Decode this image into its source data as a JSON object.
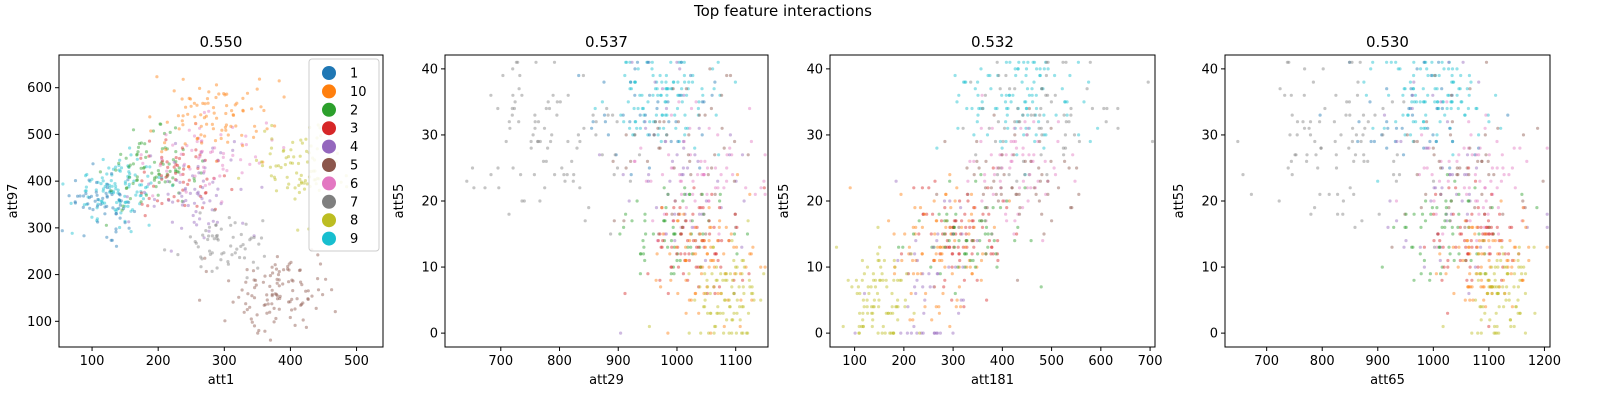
{
  "figure_title": "Top feature interactions",
  "palette": {
    "1": "#1f77b4",
    "10": "#ff7f0e",
    "2": "#2ca02c",
    "3": "#d62728",
    "4": "#9467bd",
    "5": "#8c564b",
    "6": "#e377c2",
    "7": "#7f7f7f",
    "8": "#bcbd22",
    "9": "#17becf"
  },
  "chart_data": [
    {
      "type": "scatter",
      "title": "0.550",
      "xlabel": "att1",
      "ylabel": "att97",
      "xlim": [
        50,
        540
      ],
      "ylim": [
        45,
        670
      ],
      "xticks": [
        100,
        200,
        300,
        400,
        500
      ],
      "yticks": [
        100,
        200,
        300,
        400,
        500,
        600
      ],
      "legend": {
        "position": "top-right",
        "entries": [
          "1",
          "10",
          "2",
          "3",
          "4",
          "5",
          "6",
          "7",
          "8",
          "9"
        ]
      },
      "clusters": [
        {
          "label": "9",
          "cx": 140,
          "cy": 385,
          "sx": 35,
          "sy": 35,
          "n": 110
        },
        {
          "label": "1",
          "cx": 115,
          "cy": 355,
          "sx": 25,
          "sy": 30,
          "n": 60
        },
        {
          "label": "2",
          "cx": 190,
          "cy": 420,
          "sx": 35,
          "sy": 40,
          "n": 80
        },
        {
          "label": "3",
          "cx": 235,
          "cy": 400,
          "sx": 35,
          "sy": 40,
          "n": 60
        },
        {
          "label": "4",
          "cx": 260,
          "cy": 380,
          "sx": 45,
          "sy": 50,
          "n": 70
        },
        {
          "label": "6",
          "cx": 275,
          "cy": 460,
          "sx": 45,
          "sy": 40,
          "n": 60
        },
        {
          "label": "10",
          "cx": 285,
          "cy": 540,
          "sx": 45,
          "sy": 45,
          "n": 90
        },
        {
          "label": "8",
          "cx": 410,
          "cy": 430,
          "sx": 35,
          "sy": 45,
          "n": 80
        },
        {
          "label": "7",
          "cx": 300,
          "cy": 265,
          "sx": 35,
          "sy": 35,
          "n": 60
        },
        {
          "label": "5",
          "cx": 390,
          "cy": 165,
          "sx": 40,
          "sy": 45,
          "n": 110
        }
      ]
    },
    {
      "type": "scatter",
      "title": "0.537",
      "xlabel": "att29",
      "ylabel": "att55",
      "xlim": [
        605,
        1155
      ],
      "ylim": [
        -2.1,
        42.1
      ],
      "xticks": [
        700,
        800,
        900,
        1000,
        1100
      ],
      "yticks": [
        0,
        10,
        20,
        30,
        40
      ],
      "clusters": [
        {
          "label": "9",
          "cx": 980,
          "cy": 35,
          "sx": 50,
          "sy": 4,
          "n": 110
        },
        {
          "label": "1",
          "cx": 960,
          "cy": 33,
          "sx": 55,
          "sy": 5,
          "n": 40
        },
        {
          "label": "7",
          "cx": 790,
          "cy": 30,
          "sx": 60,
          "sy": 7,
          "n": 90
        },
        {
          "label": "6",
          "cx": 1040,
          "cy": 24,
          "sx": 50,
          "sy": 5,
          "n": 70
        },
        {
          "label": "4",
          "cx": 1000,
          "cy": 22,
          "sx": 60,
          "sy": 9,
          "n": 50
        },
        {
          "label": "5",
          "cx": 1010,
          "cy": 25,
          "sx": 60,
          "sy": 7,
          "n": 50
        },
        {
          "label": "2",
          "cx": 990,
          "cy": 15,
          "sx": 55,
          "sy": 4,
          "n": 60
        },
        {
          "label": "3",
          "cx": 1040,
          "cy": 14,
          "sx": 45,
          "sy": 4,
          "n": 70
        },
        {
          "label": "10",
          "cx": 1050,
          "cy": 11,
          "sx": 40,
          "sy": 4,
          "n": 80
        },
        {
          "label": "8",
          "cx": 1085,
          "cy": 5,
          "sx": 30,
          "sy": 4,
          "n": 90
        }
      ]
    },
    {
      "type": "scatter",
      "title": "0.532",
      "xlabel": "att181",
      "ylabel": "att55",
      "xlim": [
        50,
        710
      ],
      "ylim": [
        -2.1,
        42.1
      ],
      "xticks": [
        100,
        200,
        300,
        400,
        500,
        600,
        700
      ],
      "yticks": [
        0,
        10,
        20,
        30,
        40
      ],
      "clusters": [
        {
          "label": "9",
          "cx": 420,
          "cy": 35,
          "sx": 60,
          "sy": 4,
          "n": 110
        },
        {
          "label": "7",
          "cx": 470,
          "cy": 31,
          "sx": 80,
          "sy": 6,
          "n": 70
        },
        {
          "label": "6",
          "cx": 420,
          "cy": 25,
          "sx": 60,
          "sy": 5,
          "n": 70
        },
        {
          "label": "5",
          "cx": 430,
          "cy": 22,
          "sx": 70,
          "sy": 6,
          "n": 60
        },
        {
          "label": "3",
          "cx": 310,
          "cy": 15,
          "sx": 55,
          "sy": 5,
          "n": 80
        },
        {
          "label": "10",
          "cx": 270,
          "cy": 13,
          "sx": 55,
          "sy": 5,
          "n": 90
        },
        {
          "label": "2",
          "cx": 340,
          "cy": 15,
          "sx": 70,
          "sy": 4,
          "n": 60
        },
        {
          "label": "4",
          "cx": 240,
          "cy": 8,
          "sx": 55,
          "sy": 7,
          "n": 50
        },
        {
          "label": "8",
          "cx": 150,
          "cy": 5,
          "sx": 35,
          "sy": 4,
          "n": 90
        }
      ]
    },
    {
      "type": "scatter",
      "title": "0.530",
      "xlabel": "att65",
      "ylabel": "att55",
      "xlim": [
        625,
        1210
      ],
      "ylim": [
        -2.1,
        42.1
      ],
      "xticks": [
        700,
        800,
        900,
        1000,
        1100,
        1200
      ],
      "yticks": [
        0,
        10,
        20,
        30,
        40
      ],
      "clusters": [
        {
          "label": "9",
          "cx": 1000,
          "cy": 35,
          "sx": 55,
          "sy": 4,
          "n": 110
        },
        {
          "label": "1",
          "cx": 960,
          "cy": 33,
          "sx": 60,
          "sy": 5,
          "n": 40
        },
        {
          "label": "7",
          "cx": 830,
          "cy": 30,
          "sx": 70,
          "sy": 7,
          "n": 90
        },
        {
          "label": "6",
          "cx": 1070,
          "cy": 24,
          "sx": 55,
          "sy": 5,
          "n": 70
        },
        {
          "label": "4",
          "cx": 1030,
          "cy": 22,
          "sx": 60,
          "sy": 9,
          "n": 50
        },
        {
          "label": "5",
          "cx": 1050,
          "cy": 25,
          "sx": 60,
          "sy": 7,
          "n": 50
        },
        {
          "label": "2",
          "cx": 1020,
          "cy": 15,
          "sx": 55,
          "sy": 4,
          "n": 60
        },
        {
          "label": "3",
          "cx": 1080,
          "cy": 14,
          "sx": 45,
          "sy": 4,
          "n": 70
        },
        {
          "label": "10",
          "cx": 1090,
          "cy": 11,
          "sx": 40,
          "sy": 4,
          "n": 80
        },
        {
          "label": "8",
          "cx": 1130,
          "cy": 5,
          "sx": 30,
          "sy": 4,
          "n": 90
        }
      ]
    }
  ]
}
